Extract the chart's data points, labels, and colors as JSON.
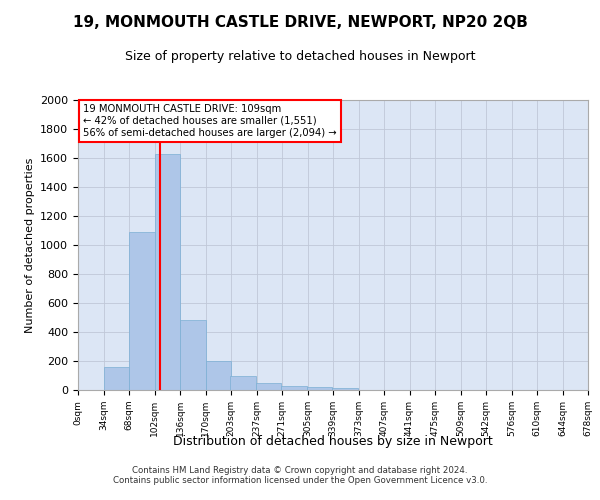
{
  "title": "19, MONMOUTH CASTLE DRIVE, NEWPORT, NP20 2QB",
  "subtitle": "Size of property relative to detached houses in Newport",
  "xlabel": "Distribution of detached houses by size in Newport",
  "ylabel": "Number of detached properties",
  "bar_color": "#AEC6E8",
  "bar_edgecolor": "#7BAFD4",
  "grid_color": "#c0c8d8",
  "background_color": "#dce6f5",
  "annotation_line_color": "red",
  "property_size": 109,
  "bin_size": 34,
  "bin_starts": [
    0,
    34,
    68,
    102,
    136,
    170,
    203,
    237,
    271,
    305,
    339,
    373,
    407,
    441,
    475,
    509,
    542,
    576,
    610,
    644
  ],
  "bin_labels": [
    "0sqm",
    "34sqm",
    "68sqm",
    "102sqm",
    "136sqm",
    "170sqm",
    "203sqm",
    "237sqm",
    "271sqm",
    "305sqm",
    "339sqm",
    "373sqm",
    "407sqm",
    "441sqm",
    "475sqm",
    "509sqm",
    "542sqm",
    "576sqm",
    "610sqm",
    "644sqm",
    "678sqm"
  ],
  "bar_heights": [
    0,
    160,
    1090,
    1630,
    480,
    200,
    100,
    45,
    25,
    20,
    15,
    0,
    0,
    0,
    0,
    0,
    0,
    0,
    0,
    0
  ],
  "ylim": [
    0,
    2000
  ],
  "yticks": [
    0,
    200,
    400,
    600,
    800,
    1000,
    1200,
    1400,
    1600,
    1800,
    2000
  ],
  "annotation_text": "19 MONMOUTH CASTLE DRIVE: 109sqm\n← 42% of detached houses are smaller (1,551)\n56% of semi-detached houses are larger (2,094) →",
  "footer_line1": "Contains HM Land Registry data © Crown copyright and database right 2024.",
  "footer_line2": "Contains public sector information licensed under the Open Government Licence v3.0."
}
